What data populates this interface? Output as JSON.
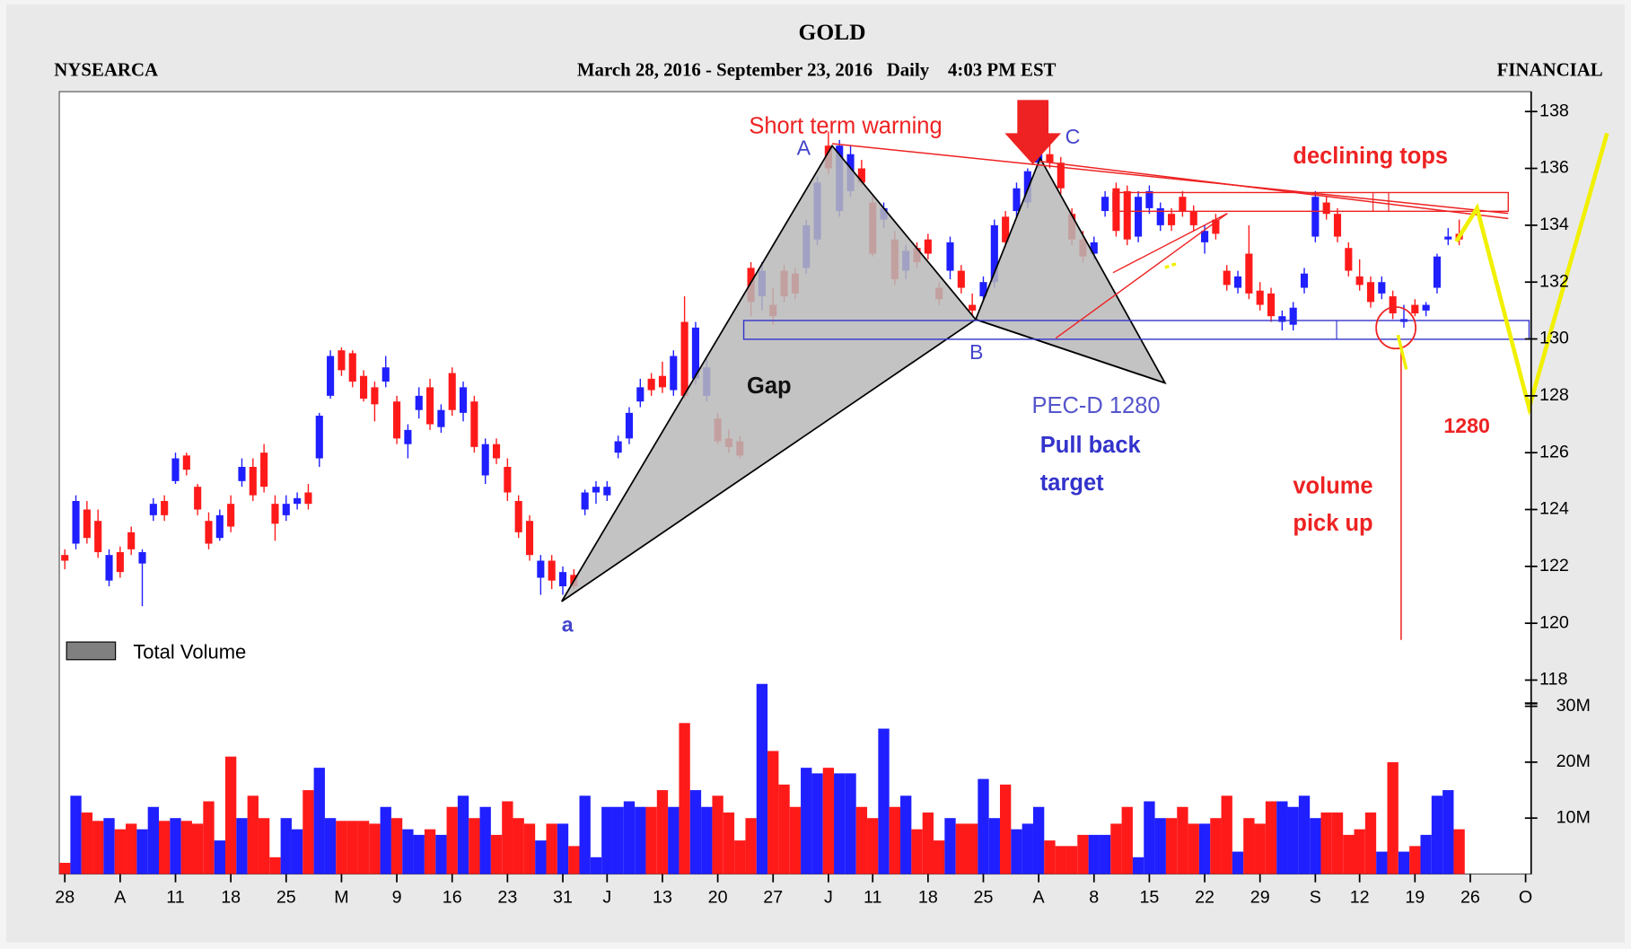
{
  "chart_data": {
    "type": "candlestick",
    "title": "GOLD",
    "exchange": "NYSEARCA",
    "subtitle": "March 28, 2016 - September 23, 2016   Daily    4:03 PM EST",
    "sector": "FINANCIAL",
    "up_color": "#1f1fff",
    "down_color": "#ff1a1a",
    "ohlc": [
      [
        122.4,
        122.6,
        121.9,
        122.2
      ],
      [
        122.8,
        124.5,
        122.6,
        124.3
      ],
      [
        124.0,
        124.3,
        122.8,
        123.0
      ],
      [
        123.6,
        124.0,
        122.3,
        122.5
      ],
      [
        121.5,
        122.6,
        121.3,
        122.4
      ],
      [
        122.5,
        122.7,
        121.6,
        121.8
      ],
      [
        123.2,
        123.4,
        122.4,
        122.6
      ],
      [
        122.1,
        122.6,
        120.6,
        122.5
      ],
      [
        123.8,
        124.4,
        123.6,
        124.2
      ],
      [
        124.3,
        124.5,
        123.6,
        123.8
      ],
      [
        125.0,
        126.0,
        124.9,
        125.8
      ],
      [
        125.9,
        126.0,
        125.2,
        125.4
      ],
      [
        124.8,
        124.9,
        123.8,
        124.0
      ],
      [
        123.6,
        123.9,
        122.6,
        122.8
      ],
      [
        123.0,
        124.0,
        122.9,
        123.8
      ],
      [
        124.2,
        124.5,
        123.2,
        123.4
      ],
      [
        125.0,
        125.8,
        124.8,
        125.5
      ],
      [
        125.5,
        125.8,
        124.3,
        124.5
      ],
      [
        126.0,
        126.3,
        124.6,
        124.8
      ],
      [
        124.2,
        124.5,
        122.9,
        123.5
      ],
      [
        123.8,
        124.5,
        123.6,
        124.2
      ],
      [
        124.2,
        124.6,
        124.0,
        124.4
      ],
      [
        124.6,
        124.9,
        124.0,
        124.2
      ],
      [
        125.8,
        127.4,
        125.5,
        127.3
      ],
      [
        128.0,
        129.6,
        127.9,
        129.4
      ],
      [
        129.6,
        129.7,
        128.7,
        128.9
      ],
      [
        129.5,
        129.6,
        128.3,
        128.5
      ],
      [
        128.7,
        128.9,
        127.8,
        127.9
      ],
      [
        128.3,
        128.5,
        127.1,
        127.7
      ],
      [
        128.5,
        129.4,
        128.3,
        129.0
      ],
      [
        127.8,
        128.0,
        126.3,
        126.5
      ],
      [
        126.3,
        127.0,
        125.8,
        126.8
      ],
      [
        127.5,
        128.3,
        127.2,
        128.0
      ],
      [
        128.3,
        128.6,
        126.8,
        127.0
      ],
      [
        126.9,
        127.7,
        126.7,
        127.5
      ],
      [
        128.8,
        129.0,
        127.3,
        127.5
      ],
      [
        127.4,
        128.5,
        127.1,
        128.3
      ],
      [
        127.8,
        128.0,
        126.0,
        126.2
      ],
      [
        125.2,
        126.5,
        124.9,
        126.3
      ],
      [
        126.3,
        126.5,
        125.6,
        125.8
      ],
      [
        125.5,
        125.8,
        124.3,
        124.6
      ],
      [
        124.3,
        124.5,
        123.0,
        123.2
      ],
      [
        123.6,
        123.8,
        122.2,
        122.4
      ],
      [
        121.6,
        122.4,
        121.0,
        122.2
      ],
      [
        122.2,
        122.4,
        121.2,
        121.5
      ],
      [
        121.3,
        122.0,
        121.0,
        121.8
      ],
      [
        121.7,
        121.9,
        121.2,
        121.3
      ],
      [
        124.0,
        124.7,
        123.8,
        124.6
      ],
      [
        124.6,
        125.0,
        124.2,
        124.8
      ],
      [
        124.5,
        125.0,
        124.3,
        124.8
      ],
      [
        126.0,
        126.6,
        125.8,
        126.4
      ],
      [
        126.5,
        127.6,
        126.3,
        127.4
      ],
      [
        127.8,
        128.6,
        127.6,
        128.3
      ],
      [
        128.6,
        128.8,
        128.0,
        128.2
      ],
      [
        128.7,
        129.2,
        128.1,
        128.3
      ],
      [
        128.2,
        129.6,
        128.0,
        129.4
      ],
      [
        130.6,
        131.5,
        127.9,
        128.0
      ],
      [
        128.6,
        130.6,
        128.4,
        130.4
      ],
      [
        128.0,
        129.3,
        127.8,
        129.0
      ],
      [
        127.2,
        127.4,
        126.3,
        126.4
      ],
      [
        126.5,
        126.8,
        126.0,
        126.2
      ],
      [
        126.4,
        126.6,
        125.8,
        125.9
      ],
      [
        132.5,
        132.7,
        130.8,
        131.3
      ],
      [
        131.5,
        132.7,
        131.0,
        132.4
      ],
      [
        131.2,
        131.8,
        130.5,
        130.8
      ],
      [
        132.4,
        132.6,
        131.3,
        131.5
      ],
      [
        132.3,
        132.5,
        131.4,
        131.6
      ],
      [
        132.5,
        134.2,
        132.3,
        134.0
      ],
      [
        133.5,
        135.7,
        133.3,
        135.5
      ],
      [
        136.8,
        137.3,
        135.8,
        136.0
      ],
      [
        134.5,
        137.0,
        134.3,
        136.8
      ],
      [
        135.2,
        136.8,
        135.0,
        136.5
      ],
      [
        136.0,
        136.3,
        135.4,
        135.5
      ],
      [
        134.8,
        135.0,
        132.9,
        133.0
      ],
      [
        134.2,
        134.8,
        133.9,
        134.6
      ],
      [
        133.5,
        133.8,
        131.9,
        132.1
      ],
      [
        132.4,
        133.3,
        132.1,
        133.1
      ],
      [
        133.2,
        133.4,
        132.5,
        132.7
      ],
      [
        133.5,
        133.7,
        132.8,
        133.0
      ],
      [
        131.8,
        132.0,
        131.2,
        131.4
      ],
      [
        132.4,
        133.6,
        132.1,
        133.4
      ],
      [
        132.4,
        132.6,
        131.6,
        131.8
      ],
      [
        131.2,
        131.6,
        130.8,
        131.0
      ],
      [
        131.5,
        132.2,
        131.3,
        132.0
      ],
      [
        132.0,
        134.2,
        131.8,
        134.0
      ],
      [
        134.3,
        134.5,
        133.2,
        133.4
      ],
      [
        134.5,
        135.5,
        134.3,
        135.3
      ],
      [
        134.8,
        136.0,
        134.6,
        135.9
      ],
      [
        136.2,
        136.8,
        136.0,
        136.6
      ],
      [
        136.5,
        136.9,
        136.0,
        136.2
      ],
      [
        136.2,
        136.4,
        135.1,
        135.3
      ],
      [
        134.4,
        134.6,
        133.3,
        133.5
      ],
      [
        133.5,
        133.8,
        132.7,
        132.9
      ],
      [
        133.0,
        133.6,
        132.8,
        133.4
      ],
      [
        134.5,
        135.2,
        134.3,
        135.0
      ],
      [
        135.3,
        135.5,
        133.6,
        133.8
      ],
      [
        135.2,
        135.4,
        133.3,
        133.5
      ],
      [
        133.6,
        135.2,
        133.4,
        135.0
      ],
      [
        134.6,
        135.4,
        134.4,
        135.2
      ],
      [
        134.0,
        134.8,
        133.8,
        134.6
      ],
      [
        134.4,
        134.6,
        133.8,
        134.0
      ],
      [
        135.0,
        135.2,
        134.3,
        134.5
      ],
      [
        134.5,
        134.7,
        133.8,
        134.0
      ],
      [
        133.4,
        134.0,
        133.0,
        133.8
      ],
      [
        134.2,
        134.4,
        133.5,
        133.7
      ],
      [
        132.4,
        132.6,
        131.7,
        131.9
      ],
      [
        131.8,
        132.4,
        131.6,
        132.2
      ],
      [
        133.0,
        134.0,
        131.4,
        131.6
      ],
      [
        131.7,
        132.0,
        131.0,
        131.2
      ],
      [
        131.6,
        131.8,
        130.6,
        130.8
      ],
      [
        130.6,
        131.0,
        130.3,
        130.8
      ],
      [
        130.5,
        131.3,
        130.3,
        131.1
      ],
      [
        131.8,
        132.5,
        131.6,
        132.3
      ],
      [
        133.6,
        135.2,
        133.4,
        135.0
      ],
      [
        134.8,
        135.0,
        134.2,
        134.4
      ],
      [
        134.4,
        134.6,
        133.4,
        133.6
      ],
      [
        133.2,
        133.4,
        132.2,
        132.4
      ],
      [
        132.2,
        132.8,
        131.7,
        131.9
      ],
      [
        132.0,
        132.2,
        131.1,
        131.3
      ],
      [
        131.6,
        132.2,
        131.4,
        132.0
      ],
      [
        131.5,
        131.7,
        130.7,
        130.9
      ],
      [
        130.6,
        131.2,
        130.4,
        130.7
      ],
      [
        131.2,
        131.4,
        130.8,
        130.9
      ],
      [
        131.0,
        131.3,
        130.8,
        131.2
      ],
      [
        131.8,
        133.0,
        131.6,
        132.9
      ],
      [
        133.5,
        133.9,
        133.3,
        133.6
      ],
      [
        133.7,
        134.2,
        133.3,
        133.5
      ]
    ],
    "volume": [
      2,
      14,
      11,
      9.5,
      10,
      8,
      9,
      8,
      12,
      9.5,
      10,
      9.5,
      9,
      13,
      6,
      21,
      10,
      14,
      10,
      3,
      10,
      8,
      15,
      19,
      10,
      9.5,
      9.5,
      9.5,
      9,
      12,
      10,
      8,
      7,
      8,
      7,
      12,
      14,
      10,
      12,
      7,
      13,
      10,
      9,
      6,
      9,
      9,
      5,
      14,
      3,
      12,
      12,
      13,
      12,
      12,
      15,
      12,
      27,
      15,
      12,
      14,
      11,
      6,
      10,
      34,
      22,
      16,
      12,
      19,
      18,
      19,
      18,
      18,
      12,
      10,
      26,
      12,
      14,
      8,
      11,
      6,
      10,
      9,
      9,
      17,
      10,
      16,
      8,
      9,
      12,
      6,
      5,
      5,
      7,
      7,
      7,
      9,
      12,
      3,
      13,
      10,
      10,
      12,
      9,
      9,
      10,
      14,
      4,
      10,
      9,
      13,
      13,
      12,
      14,
      10,
      11,
      11,
      7,
      8,
      11,
      4,
      20,
      4,
      5,
      7,
      14,
      15,
      8
    ],
    "xlim": [
      -0.5,
      132.5
    ],
    "xticks": [
      {
        "value": 0,
        "label": "28"
      },
      {
        "value": 5,
        "label": "A"
      },
      {
        "value": 10,
        "label": "11"
      },
      {
        "value": 15,
        "label": "18"
      },
      {
        "value": 20,
        "label": "25"
      },
      {
        "value": 25,
        "label": "M"
      },
      {
        "value": 30,
        "label": "9"
      },
      {
        "value": 35,
        "label": "16"
      },
      {
        "value": 40,
        "label": "23"
      },
      {
        "value": 45,
        "label": "31"
      },
      {
        "value": 49,
        "label": "J"
      },
      {
        "value": 54,
        "label": "13"
      },
      {
        "value": 59,
        "label": "20"
      },
      {
        "value": 64,
        "label": "27"
      },
      {
        "value": 69,
        "label": "J"
      },
      {
        "value": 73,
        "label": "11"
      },
      {
        "value": 78,
        "label": "18"
      },
      {
        "value": 83,
        "label": "25"
      },
      {
        "value": 88,
        "label": "A"
      },
      {
        "value": 93,
        "label": "8"
      },
      {
        "value": 98,
        "label": "15"
      },
      {
        "value": 103,
        "label": "22"
      },
      {
        "value": 108,
        "label": "29"
      },
      {
        "value": 113,
        "label": "S"
      },
      {
        "value": 117,
        "label": "12"
      },
      {
        "value": 122,
        "label": "19"
      },
      {
        "value": 127,
        "label": "26"
      },
      {
        "value": 132,
        "label": "O"
      }
    ],
    "ylim": [
      117.4,
      138.7
    ],
    "yticks": [
      118,
      120,
      122,
      124,
      126,
      128,
      130,
      132,
      134,
      136,
      138
    ],
    "y2lim": [
      0,
      30.7
    ],
    "y2ticks": [
      {
        "value": 10,
        "label": "10M"
      },
      {
        "value": 20,
        "label": "20M"
      },
      {
        "value": 30,
        "label": "30M"
      }
    ],
    "legend": {
      "label": "Total Volume",
      "color": "#808080"
    },
    "annotations": [
      "Short term warning",
      "A",
      "C",
      "B",
      "a",
      "Gap",
      "PEC-D 1280",
      "Pull back",
      "target",
      "declining tops",
      "1280",
      "volume",
      "pick up"
    ]
  }
}
